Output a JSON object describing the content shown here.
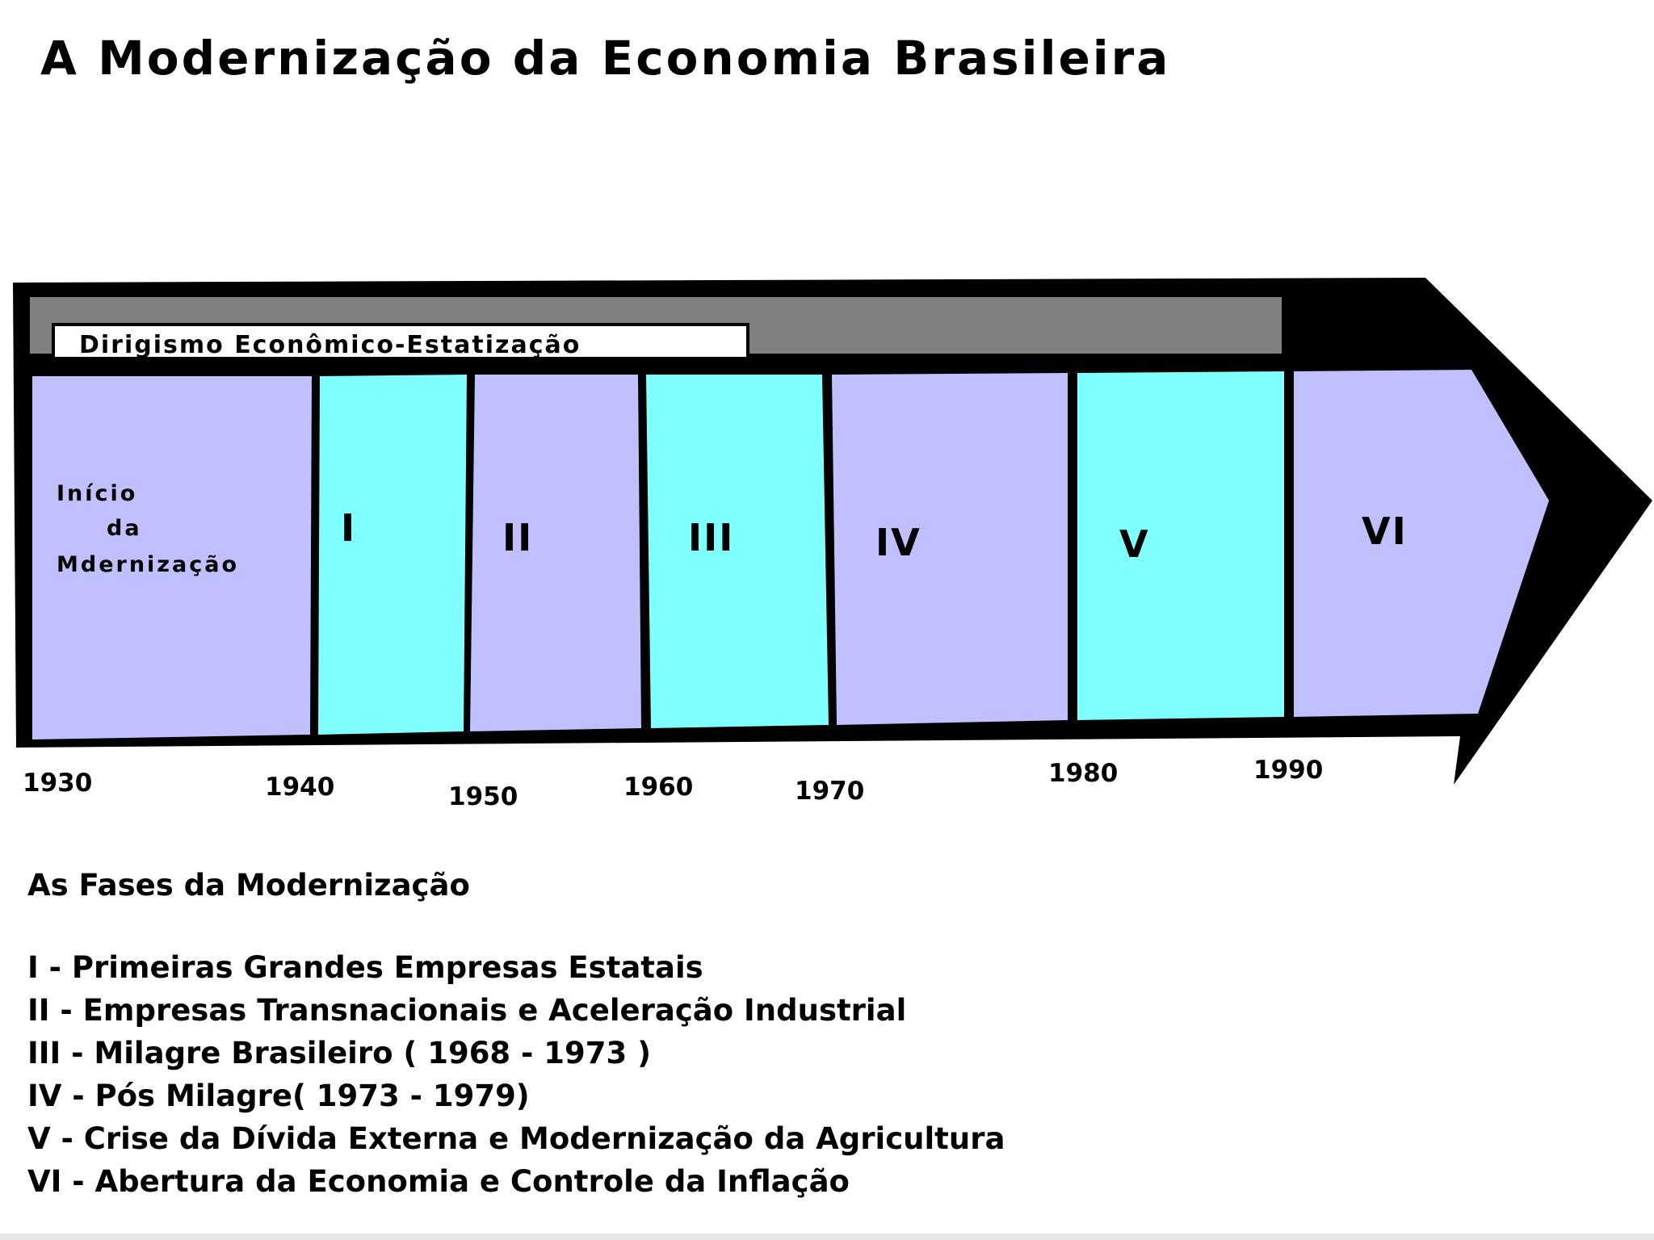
{
  "title": "A Modernização da Economia Brasileira",
  "banner": "Dirigismo Econômico-Estatização",
  "phases": [
    {
      "lines": [
        "Início",
        "da",
        "Mdernização"
      ],
      "color": "#c0c0ff"
    },
    {
      "label": "I",
      "color": "#80ffff"
    },
    {
      "label": "II",
      "color": "#c0c0ff"
    },
    {
      "label": "III",
      "color": "#80ffff"
    },
    {
      "label": "IV",
      "color": "#c0c0ff"
    },
    {
      "label": "V",
      "color": "#80ffff"
    },
    {
      "label": "VI",
      "color": "#c0c0ff"
    }
  ],
  "years": [
    "1930",
    "1940",
    "1950",
    "1960",
    "1970",
    "1980",
    "1990"
  ],
  "colors": {
    "frame": "#000000",
    "banner_band": "#808080",
    "lavender": "#c0c0ff",
    "cyan": "#80ffff"
  },
  "legend": {
    "heading": "As Fases da Modernização",
    "items": [
      "I - Primeiras Grandes Empresas Estatais",
      "II - Empresas Transnacionais e Aceleração Industrial",
      "III - Milagre Brasileiro ( 1968 - 1973 )",
      "IV - Pós Milagre( 1973 - 1979)",
      "V - Crise da Dívida Externa e Modernização da Agricultura",
      "VI - Abertura da Economia e Controle da Inflação"
    ]
  }
}
